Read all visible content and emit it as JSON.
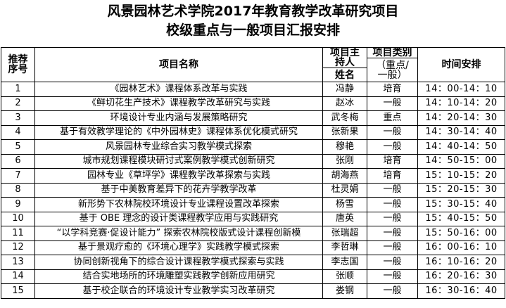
{
  "title_line1": "风景园林艺术学院2017年教育教学改革研究项目",
  "title_line2": "校级重点与一般项目汇报安排",
  "headers": {
    "seq": "推荐序号",
    "name": "项目名称",
    "host": "项目主持人",
    "host_name": "姓名",
    "category": "项目类别",
    "category_note": "（重点/一般）",
    "time": "时间安排"
  },
  "rows": [
    {
      "no": "1",
      "name": "《园林艺术》课程体系改革与实践",
      "host": "冯静",
      "cat": "培育",
      "time": "14：00-14：10"
    },
    {
      "no": "2",
      "name": "《鲜切花生产技术》课程教学改革研究与实践",
      "host": "赵冰",
      "cat": "一般",
      "time": "14：10-14：20"
    },
    {
      "no": "3",
      "name": "环境设计专业内涵与发展策略研究",
      "host": "武冬梅",
      "cat": "重点",
      "time": "14：20-14：30"
    },
    {
      "no": "4",
      "name": "基于有效教学理论的《中外园林史》课程体系优化模式研究",
      "host": "张新果",
      "cat": "一般",
      "time": "14：30-14：40"
    },
    {
      "no": "5",
      "name": "风景园林专业综合实习教学模式探索",
      "host": "穆艳",
      "cat": "一般",
      "time": "14：40-14：50"
    },
    {
      "no": "6",
      "name": "城市规划课程模块研讨式案例教学模式创新研究",
      "host": "张刚",
      "cat": "培育",
      "time": "14：50-15：00"
    },
    {
      "no": "7",
      "name": "园林专业《草坪学》课程教学改革探索与实践",
      "host": "胡海燕",
      "cat": "培育",
      "time": "15：10-15：20"
    },
    {
      "no": "8",
      "name": "基于中美教育差异下的花卉学教学改革",
      "host": "杜灵娟",
      "cat": "一般",
      "time": "15：20-15：30"
    },
    {
      "no": "9",
      "name": "新形势下农林院校环境设计专业课程设置改革探索",
      "host": "杨雪",
      "cat": "一般",
      "time": "15：30-15：40"
    },
    {
      "no": "10",
      "name": "基于 OBE 理念的设计类课程教学应用与实践研究",
      "host": "唐英",
      "cat": "一般",
      "time": "15：40-15：50"
    },
    {
      "no": "11",
      "name": "“以学科竞赛·促设计能力” 探索农林院校版式设计课程创新模",
      "host": "张瑞超",
      "cat": "一般",
      "time": "15：50-16：00"
    },
    {
      "no": "12",
      "name": "基于景观疗愈的《环境心理学》实践教学模式探索",
      "host": "李哲琳",
      "cat": "一般",
      "time": "16：00-16：10"
    },
    {
      "no": "13",
      "name": "协同创新视角下的综合设计课程教学模式探索与实践",
      "host": "李志国",
      "cat": "一般",
      "time": "16：10-16：20"
    },
    {
      "no": "14",
      "name": "结合实地场所的环境雕塑实践教学创新应用研究",
      "host": "张顺",
      "cat": "一般",
      "time": "16：20-16：30"
    },
    {
      "no": "15",
      "name": "基于校企联合的环境设计专业教学实习改革研究",
      "host": "娄钢",
      "cat": "一般",
      "time": "16：30-16：40"
    }
  ]
}
